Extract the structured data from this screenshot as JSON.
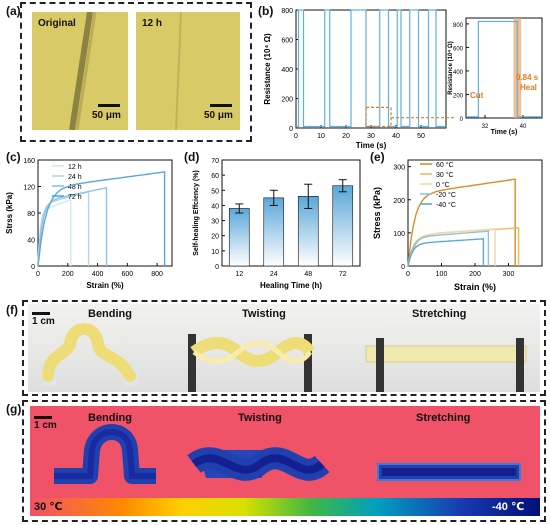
{
  "panels": {
    "a": {
      "letter": "(a)",
      "left_tag": "Original",
      "right_tag": "12 h",
      "scale_left": "50 μm",
      "scale_right": "50 μm"
    },
    "b": {
      "letter": "(b)",
      "cut": "Cut",
      "heal": "Heal",
      "heal_time": "0.84 s"
    },
    "c": {
      "letter": "(c)"
    },
    "d": {
      "letter": "(d)"
    },
    "e": {
      "letter": "(e)"
    },
    "f": {
      "letter": "(f)",
      "scale": "1 cm",
      "labels": [
        "Bending",
        "Twisting",
        "Stretching"
      ]
    },
    "g": {
      "letter": "(g)",
      "scale": "1 cm",
      "labels": [
        "Bending",
        "Twisting",
        "Stretching"
      ],
      "temp_high": "30 ℃",
      "temp_low": "-40 ℃"
    }
  },
  "chart_data": [
    {
      "id": "b-main",
      "type": "line",
      "xlabel": "Time (s)",
      "ylabel": "Resistance (10⁴ Ω)",
      "xlim": [
        0,
        60
      ],
      "ylim": [
        0,
        800
      ],
      "xticks": [
        0,
        10,
        20,
        30,
        40,
        50
      ],
      "yticks": [
        0,
        200,
        400,
        600,
        800
      ],
      "color": "#5fb2de",
      "cut_times": [
        1,
        11.5,
        22,
        33.5,
        40.5,
        45.5,
        53
      ],
      "heal_times": [
        3,
        13.5,
        28,
        37,
        42,
        49,
        56
      ],
      "baseline": 10
    },
    {
      "id": "b-inset",
      "type": "line",
      "xlabel": "Time (s)",
      "ylabel": "Resistance (10⁴ Ω)",
      "xlim": [
        28,
        44
      ],
      "ylim": [
        0,
        850
      ],
      "xticks": [
        32,
        40
      ],
      "yticks": [
        0,
        200,
        400,
        600,
        800
      ],
      "color": "#5fb2de",
      "cut_time": 30.6,
      "heal_time": 38.8,
      "baseline": 10,
      "highlight_color": "#f4a460"
    },
    {
      "id": "c",
      "type": "line",
      "xlabel": "Strain (%)",
      "ylabel": "Strss (kPa)",
      "xlim": [
        0,
        900
      ],
      "ylim": [
        0,
        160
      ],
      "xticks": [
        0,
        200,
        400,
        600,
        800
      ],
      "yticks": [
        0,
        40,
        80,
        120,
        160
      ],
      "series": [
        {
          "name": "12 h",
          "color": "#d3e8f5",
          "max_strain": 220,
          "max_stress": 100
        },
        {
          "name": "24 h",
          "color": "#b2d6ee",
          "max_strain": 340,
          "max_stress": 112
        },
        {
          "name": "48 h",
          "color": "#8cc3e6",
          "max_strain": 460,
          "max_stress": 118
        },
        {
          "name": "72 h",
          "color": "#5aa7d9",
          "max_strain": 850,
          "max_stress": 142
        }
      ]
    },
    {
      "id": "d",
      "type": "bar",
      "xlabel": "Healing Time (h)",
      "ylabel": "Self-healing Effciency (%)",
      "categories": [
        "12",
        "24",
        "48",
        "72"
      ],
      "values": [
        38,
        45,
        46,
        53
      ],
      "errors": [
        3,
        5,
        8,
        4
      ],
      "ylim": [
        0,
        70
      ],
      "yticks": [
        0,
        10,
        20,
        30,
        40,
        50,
        60,
        70
      ],
      "color": "#5aa7d9"
    },
    {
      "id": "e",
      "type": "line",
      "xlabel": "Strain (%)",
      "ylabel": "Stress (kPa)",
      "xlim": [
        0,
        400
      ],
      "ylim": [
        0,
        320
      ],
      "xticks": [
        0,
        100,
        200,
        300
      ],
      "yticks": [
        0,
        100,
        200,
        300
      ],
      "series": [
        {
          "name": "60 °C",
          "color": "#e08a20",
          "max_strain": 320,
          "max_stress": 262
        },
        {
          "name": "30 °C",
          "color": "#f0b85a",
          "max_strain": 330,
          "max_stress": 115
        },
        {
          "name": "0 °C",
          "color": "#f5d9a0",
          "max_strain": 260,
          "max_stress": 112
        },
        {
          "name": "-20 °C",
          "color": "#8cc3e6",
          "max_strain": 240,
          "max_stress": 105
        },
        {
          "name": "-40 °C",
          "color": "#5aa7d9",
          "max_strain": 225,
          "max_stress": 82
        }
      ]
    }
  ]
}
